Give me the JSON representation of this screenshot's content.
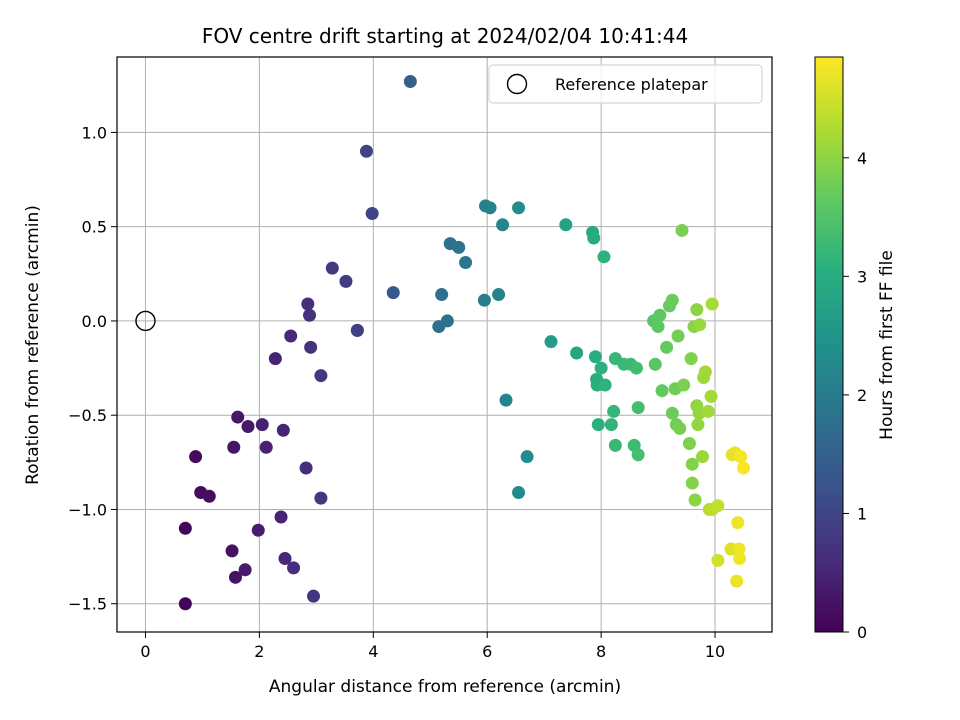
{
  "chart_data": {
    "type": "scatter",
    "title": "FOV centre drift starting at 2024/02/04 10:41:44",
    "xlabel": "Angular distance from reference (arcmin)",
    "ylabel": "Rotation from reference (arcmin)",
    "xlim": [
      -0.5,
      11.0
    ],
    "ylim": [
      -1.65,
      1.4
    ],
    "xticks": [
      0,
      2,
      4,
      6,
      8,
      10
    ],
    "xtick_labels": [
      "0",
      "2",
      "4",
      "6",
      "8",
      "10"
    ],
    "yticks": [
      -1.5,
      -1.0,
      -0.5,
      0.0,
      0.5,
      1.0
    ],
    "ytick_labels": [
      "−1.5",
      "−1.0",
      "−0.5",
      "0.0",
      "0.5",
      "1.0"
    ],
    "grid": true,
    "legend": {
      "position": "top-right",
      "entries": [
        "Reference platepar"
      ]
    },
    "reference_point": {
      "x": 0,
      "y": 0
    },
    "colorbar": {
      "label": "Hours from first FF file",
      "colormap": "viridis",
      "range": [
        0,
        4.85
      ],
      "ticks": [
        0,
        1,
        2,
        3,
        4
      ],
      "tick_labels": [
        "0",
        "1",
        "2",
        "3",
        "4"
      ]
    },
    "points": [
      {
        "x": 0.7,
        "y": -1.5,
        "h": 0.05
      },
      {
        "x": 0.7,
        "y": -1.1,
        "h": 0.08
      },
      {
        "x": 0.88,
        "y": -0.72,
        "h": 0.12
      },
      {
        "x": 0.97,
        "y": -0.91,
        "h": 0.15
      },
      {
        "x": 1.12,
        "y": -0.93,
        "h": 0.18
      },
      {
        "x": 1.52,
        "y": -1.22,
        "h": 0.22
      },
      {
        "x": 1.58,
        "y": -1.36,
        "h": 0.25
      },
      {
        "x": 1.55,
        "y": -0.67,
        "h": 0.28
      },
      {
        "x": 1.62,
        "y": -0.51,
        "h": 0.3
      },
      {
        "x": 1.8,
        "y": -0.56,
        "h": 0.33
      },
      {
        "x": 1.75,
        "y": -1.32,
        "h": 0.36
      },
      {
        "x": 1.98,
        "y": -1.11,
        "h": 0.4
      },
      {
        "x": 2.05,
        "y": -0.55,
        "h": 0.42
      },
      {
        "x": 2.12,
        "y": -0.67,
        "h": 0.45
      },
      {
        "x": 2.28,
        "y": -0.2,
        "h": 0.48
      },
      {
        "x": 2.38,
        "y": -1.04,
        "h": 0.5
      },
      {
        "x": 2.42,
        "y": -0.58,
        "h": 0.52
      },
      {
        "x": 2.45,
        "y": -1.26,
        "h": 0.55
      },
      {
        "x": 2.55,
        "y": -0.08,
        "h": 0.58
      },
      {
        "x": 2.6,
        "y": -1.31,
        "h": 0.6
      },
      {
        "x": 2.82,
        "y": -0.78,
        "h": 0.62
      },
      {
        "x": 2.85,
        "y": 0.09,
        "h": 0.65
      },
      {
        "x": 2.88,
        "y": 0.03,
        "h": 0.67
      },
      {
        "x": 2.9,
        "y": -0.14,
        "h": 0.7
      },
      {
        "x": 2.95,
        "y": -1.46,
        "h": 0.72
      },
      {
        "x": 3.08,
        "y": -0.94,
        "h": 0.75
      },
      {
        "x": 3.08,
        "y": -0.29,
        "h": 0.78
      },
      {
        "x": 3.28,
        "y": 0.28,
        "h": 0.8
      },
      {
        "x": 3.52,
        "y": 0.21,
        "h": 0.85
      },
      {
        "x": 3.72,
        "y": -0.05,
        "h": 0.88
      },
      {
        "x": 3.72,
        "y": -0.05,
        "h": 0.9
      },
      {
        "x": 3.88,
        "y": 0.9,
        "h": 0.95
      },
      {
        "x": 3.98,
        "y": 0.57,
        "h": 1.0
      },
      {
        "x": 4.35,
        "y": 0.15,
        "h": 1.35
      },
      {
        "x": 4.65,
        "y": 1.27,
        "h": 1.5
      },
      {
        "x": 5.15,
        "y": -0.03,
        "h": 1.75
      },
      {
        "x": 5.2,
        "y": 0.14,
        "h": 1.78
      },
      {
        "x": 5.3,
        "y": 0.0,
        "h": 1.8
      },
      {
        "x": 5.35,
        "y": 0.41,
        "h": 1.82
      },
      {
        "x": 5.5,
        "y": 0.39,
        "h": 1.85
      },
      {
        "x": 5.62,
        "y": 0.31,
        "h": 1.88
      },
      {
        "x": 5.95,
        "y": 0.11,
        "h": 2.05
      },
      {
        "x": 5.97,
        "y": 0.61,
        "h": 2.1
      },
      {
        "x": 6.05,
        "y": 0.6,
        "h": 2.12
      },
      {
        "x": 6.2,
        "y": 0.14,
        "h": 2.15
      },
      {
        "x": 6.27,
        "y": 0.51,
        "h": 2.18
      },
      {
        "x": 6.33,
        "y": -0.42,
        "h": 2.2
      },
      {
        "x": 6.55,
        "y": -0.91,
        "h": 2.3
      },
      {
        "x": 6.55,
        "y": 0.6,
        "h": 2.32
      },
      {
        "x": 6.7,
        "y": -0.72,
        "h": 2.35
      },
      {
        "x": 7.12,
        "y": -0.11,
        "h": 2.65
      },
      {
        "x": 7.38,
        "y": 0.51,
        "h": 2.75
      },
      {
        "x": 7.57,
        "y": -0.17,
        "h": 2.85
      },
      {
        "x": 7.85,
        "y": 0.47,
        "h": 2.95
      },
      {
        "x": 7.87,
        "y": 0.44,
        "h": 2.97
      },
      {
        "x": 7.9,
        "y": -0.19,
        "h": 3.0
      },
      {
        "x": 7.92,
        "y": -0.31,
        "h": 3.02
      },
      {
        "x": 7.93,
        "y": -0.34,
        "h": 3.04
      },
      {
        "x": 7.95,
        "y": -0.55,
        "h": 3.06
      },
      {
        "x": 8.0,
        "y": -0.25,
        "h": 3.08
      },
      {
        "x": 8.05,
        "y": 0.34,
        "h": 3.1
      },
      {
        "x": 8.07,
        "y": -0.34,
        "h": 3.12
      },
      {
        "x": 8.18,
        "y": -0.55,
        "h": 3.15
      },
      {
        "x": 8.22,
        "y": -0.48,
        "h": 3.18
      },
      {
        "x": 8.25,
        "y": -0.2,
        "h": 3.2
      },
      {
        "x": 8.25,
        "y": -0.66,
        "h": 3.22
      },
      {
        "x": 8.4,
        "y": -0.23,
        "h": 3.25
      },
      {
        "x": 8.52,
        "y": -0.23,
        "h": 3.28
      },
      {
        "x": 8.58,
        "y": -0.66,
        "h": 3.3
      },
      {
        "x": 8.62,
        "y": -0.25,
        "h": 3.33
      },
      {
        "x": 8.65,
        "y": -0.46,
        "h": 3.36
      },
      {
        "x": 8.65,
        "y": -0.71,
        "h": 3.38
      },
      {
        "x": 8.92,
        "y": 0.0,
        "h": 3.55
      },
      {
        "x": 8.95,
        "y": -0.23,
        "h": 3.58
      },
      {
        "x": 9.0,
        "y": -0.03,
        "h": 3.6
      },
      {
        "x": 9.03,
        "y": 0.03,
        "h": 3.62
      },
      {
        "x": 9.07,
        "y": -0.37,
        "h": 3.65
      },
      {
        "x": 9.15,
        "y": -0.14,
        "h": 3.68
      },
      {
        "x": 9.2,
        "y": 0.08,
        "h": 3.7
      },
      {
        "x": 9.25,
        "y": 0.11,
        "h": 3.72
      },
      {
        "x": 9.25,
        "y": -0.49,
        "h": 3.74
      },
      {
        "x": 9.3,
        "y": -0.36,
        "h": 3.76
      },
      {
        "x": 9.32,
        "y": -0.55,
        "h": 3.78
      },
      {
        "x": 9.35,
        "y": -0.08,
        "h": 3.8
      },
      {
        "x": 9.38,
        "y": -0.57,
        "h": 3.82
      },
      {
        "x": 9.42,
        "y": 0.48,
        "h": 3.84
      },
      {
        "x": 9.45,
        "y": -0.34,
        "h": 3.86
      },
      {
        "x": 9.55,
        "y": -0.65,
        "h": 3.88
      },
      {
        "x": 9.58,
        "y": -0.2,
        "h": 3.9
      },
      {
        "x": 9.6,
        "y": -0.76,
        "h": 3.92
      },
      {
        "x": 9.6,
        "y": -0.86,
        "h": 3.94
      },
      {
        "x": 9.63,
        "y": -0.03,
        "h": 3.96
      },
      {
        "x": 9.65,
        "y": -0.95,
        "h": 3.98
      },
      {
        "x": 9.68,
        "y": 0.06,
        "h": 4.0
      },
      {
        "x": 9.68,
        "y": -0.45,
        "h": 4.02
      },
      {
        "x": 9.7,
        "y": -0.55,
        "h": 4.04
      },
      {
        "x": 9.72,
        "y": -0.49,
        "h": 4.06
      },
      {
        "x": 9.73,
        "y": -0.02,
        "h": 4.08
      },
      {
        "x": 9.78,
        "y": -0.72,
        "h": 4.1
      },
      {
        "x": 9.8,
        "y": -0.3,
        "h": 4.12
      },
      {
        "x": 9.83,
        "y": -0.27,
        "h": 4.14
      },
      {
        "x": 9.88,
        "y": -0.48,
        "h": 4.16
      },
      {
        "x": 9.9,
        "y": -1.0,
        "h": 4.3
      },
      {
        "x": 9.93,
        "y": -0.4,
        "h": 4.18
      },
      {
        "x": 9.95,
        "y": 0.09,
        "h": 4.2
      },
      {
        "x": 9.95,
        "y": -1.0,
        "h": 4.35
      },
      {
        "x": 10.05,
        "y": -0.98,
        "h": 4.4
      },
      {
        "x": 10.05,
        "y": -1.27,
        "h": 4.5
      },
      {
        "x": 10.28,
        "y": -1.21,
        "h": 4.6
      },
      {
        "x": 10.3,
        "y": -0.71,
        "h": 4.65
      },
      {
        "x": 10.35,
        "y": -0.7,
        "h": 4.68
      },
      {
        "x": 10.38,
        "y": -1.38,
        "h": 4.7
      },
      {
        "x": 10.4,
        "y": -1.07,
        "h": 4.72
      },
      {
        "x": 10.42,
        "y": -1.21,
        "h": 4.74
      },
      {
        "x": 10.43,
        "y": -1.26,
        "h": 4.76
      },
      {
        "x": 10.45,
        "y": -0.72,
        "h": 4.78
      },
      {
        "x": 10.5,
        "y": -0.78,
        "h": 4.82
      }
    ]
  }
}
